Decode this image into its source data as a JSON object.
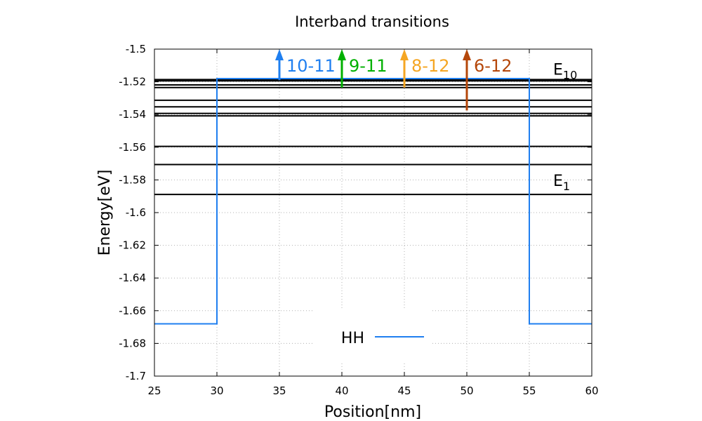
{
  "chart_data": {
    "type": "line",
    "title": "Interband transitions",
    "xlabel": "Position[nm]",
    "ylabel": "Energy[eV]",
    "xlim": [
      25,
      60
    ],
    "ylim": [
      -1.7,
      -1.5
    ],
    "xticks": [
      25,
      30,
      35,
      40,
      45,
      50,
      55,
      60
    ],
    "yticks": [
      -1.5,
      -1.52,
      -1.54,
      -1.56,
      -1.58,
      -1.6,
      -1.62,
      -1.64,
      -1.66,
      -1.68,
      -1.7
    ],
    "grid": true,
    "legend_position": "bottom-center",
    "series": [
      {
        "name": "HH",
        "color": "#1f7ff0",
        "x": [
          25,
          30,
          30,
          55,
          55,
          60
        ],
        "y": [
          -1.668,
          -1.668,
          -1.518,
          -1.518,
          -1.668,
          -1.668
        ]
      }
    ],
    "energy_levels": [
      -1.5889,
      -1.5706,
      -1.5595,
      -1.5408,
      -1.5393,
      -1.5353,
      -1.5313,
      -1.5235,
      -1.5219,
      -1.5194,
      -1.5186
    ],
    "level_labels": [
      {
        "base": "E",
        "sub": "10",
        "at_y": -1.52
      },
      {
        "base": "E",
        "sub": "1",
        "at_y": -1.588
      }
    ],
    "transitions": [
      {
        "label": "10-11",
        "x": 35,
        "y_from": -1.519,
        "y_to": -1.5,
        "color": "#1f7ff0"
      },
      {
        "label": "9-11",
        "x": 40,
        "y_from": -1.5235,
        "y_to": -1.5,
        "color": "#00b000"
      },
      {
        "label": "8-12",
        "x": 45,
        "y_from": -1.5235,
        "y_to": -1.5,
        "color": "#f5a623"
      },
      {
        "label": "6-12",
        "x": 50,
        "y_from": -1.5375,
        "y_to": -1.5,
        "color": "#b5470a"
      }
    ]
  }
}
